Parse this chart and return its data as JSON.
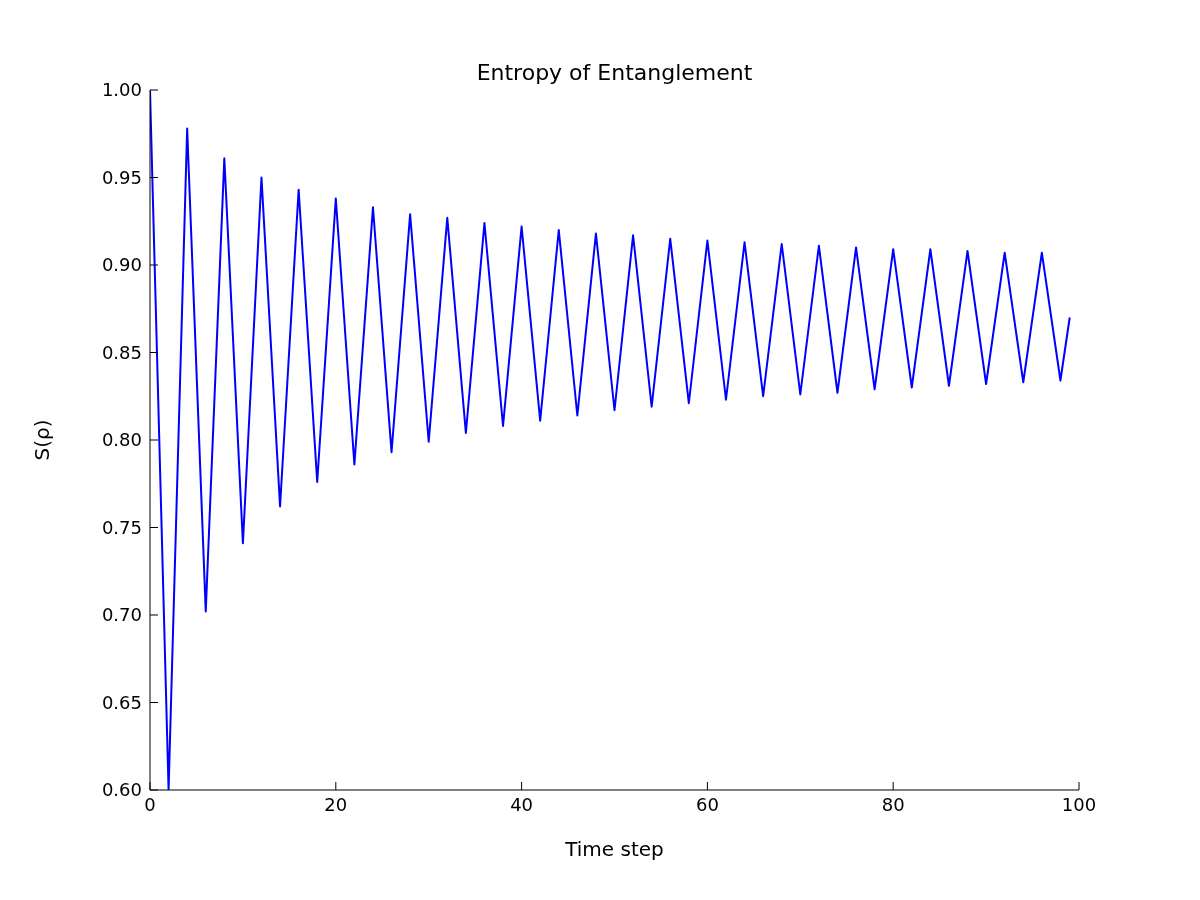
{
  "chart_data": {
    "type": "line",
    "title": "Entropy of Entanglement",
    "xlabel": "Time step",
    "ylabel": "S(ρ)",
    "x": [
      0,
      2,
      4,
      6,
      8,
      10,
      12,
      14,
      16,
      18,
      20,
      22,
      24,
      26,
      28,
      30,
      32,
      34,
      36,
      38,
      40,
      42,
      44,
      46,
      48,
      50,
      52,
      54,
      56,
      58,
      60,
      62,
      64,
      66,
      68,
      70,
      72,
      74,
      76,
      78,
      80,
      82,
      84,
      86,
      88,
      90,
      92,
      94,
      96,
      98,
      99
    ],
    "series": [
      {
        "color": "#0000ff",
        "values": [
          1.0,
          0.6,
          0.978,
          0.702,
          0.961,
          0.741,
          0.95,
          0.762,
          0.943,
          0.776,
          0.938,
          0.786,
          0.933,
          0.793,
          0.929,
          0.799,
          0.927,
          0.804,
          0.924,
          0.808,
          0.922,
          0.811,
          0.92,
          0.814,
          0.918,
          0.817,
          0.917,
          0.819,
          0.915,
          0.821,
          0.914,
          0.823,
          0.913,
          0.825,
          0.912,
          0.826,
          0.911,
          0.827,
          0.91,
          0.829,
          0.909,
          0.83,
          0.909,
          0.831,
          0.908,
          0.832,
          0.907,
          0.833,
          0.907,
          0.834,
          0.87
        ]
      }
    ],
    "xlim": [
      0,
      100
    ],
    "xticks": [
      0,
      20,
      40,
      60,
      80,
      100
    ],
    "ylim": [
      0.6,
      1.0
    ],
    "yticks": [
      {
        "value": 0.6,
        "label": "0.60"
      },
      {
        "value": 0.65,
        "label": "0.65"
      },
      {
        "value": 0.7,
        "label": "0.70"
      },
      {
        "value": 0.75,
        "label": "0.75"
      },
      {
        "value": 0.8,
        "label": "0.80"
      },
      {
        "value": 0.85,
        "label": "0.85"
      },
      {
        "value": 0.9,
        "label": "0.90"
      },
      {
        "value": 0.95,
        "label": "0.95"
      },
      {
        "value": 1.0,
        "label": "1.00"
      }
    ],
    "grid": false,
    "legend": false,
    "marker": "none",
    "line_style": "solid"
  }
}
